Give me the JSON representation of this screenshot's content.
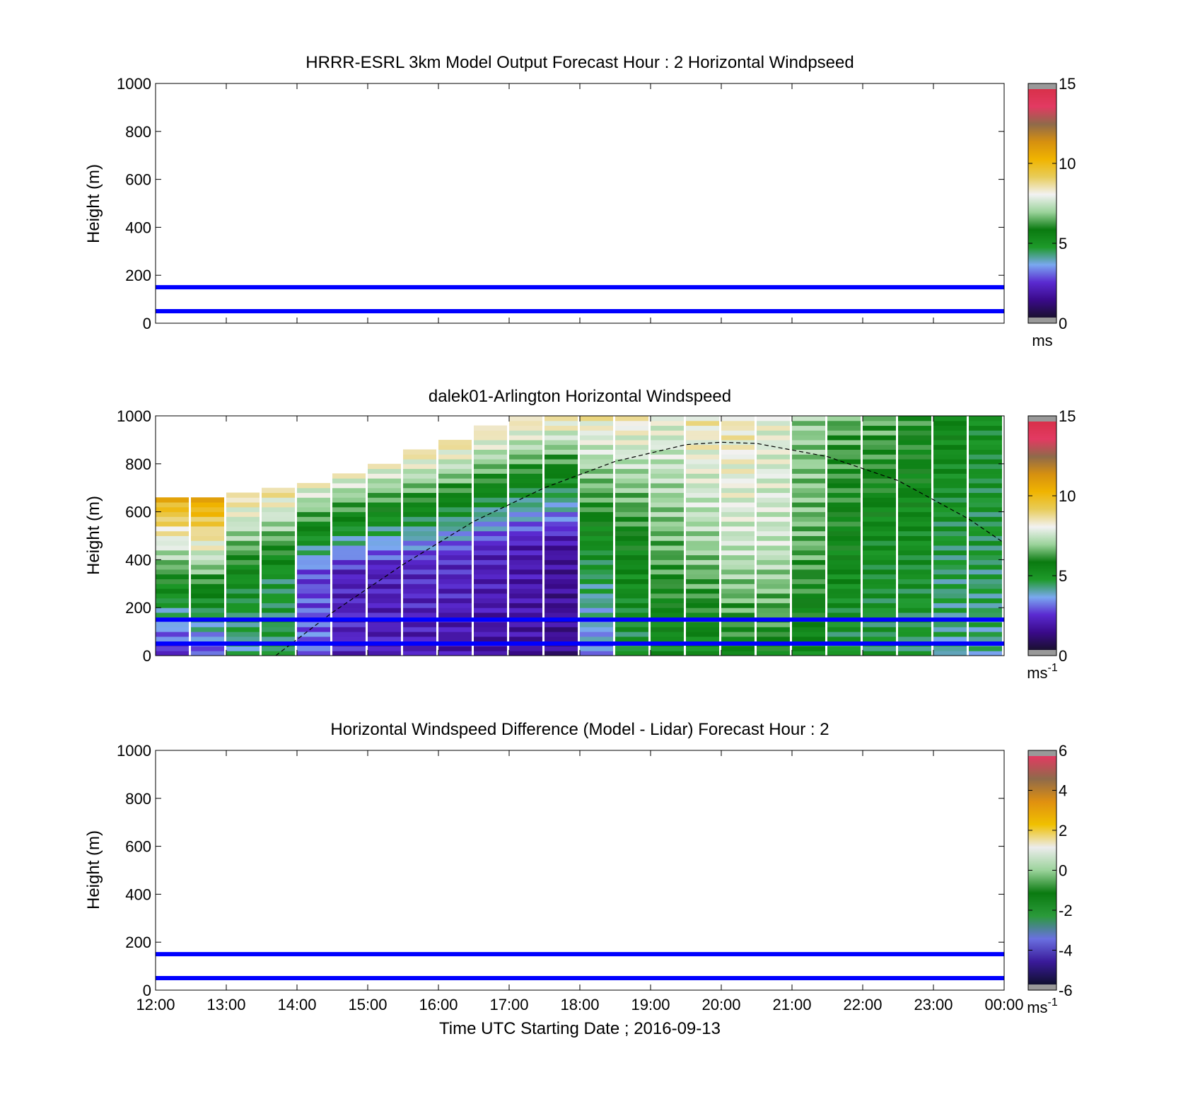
{
  "colors": {
    "guide_lines": "#0000ff",
    "speed_colormap": [
      "#1a1030",
      "#3a0a8a",
      "#5a2ad0",
      "#7aa8f0",
      "#1e9a2a",
      "#0a7a10",
      "#9bd39b",
      "#f2f2f2",
      "#e8cc5a",
      "#f0b400",
      "#d69010",
      "#8f6a4a",
      "#e23a62",
      "#d8304a"
    ],
    "diff_colormap": [
      "#101030",
      "#3a1a9a",
      "#6a70e0",
      "#2a9a3a",
      "#0a7a10",
      "#9bd39b",
      "#ececec",
      "#f0c000",
      "#e09010",
      "#8f6a4a",
      "#e23a62"
    ],
    "nodata": "#999999"
  },
  "panels": [
    {
      "id": "model",
      "title": "HRRR-ESRL 3km Model Output   Forecast Hour : 2 Horizontal Windpseed",
      "ylabel": "Height (m)",
      "yticks": [
        "0",
        "200",
        "400",
        "600",
        "800",
        "1000"
      ],
      "colorbar": {
        "ticks": [
          "0",
          "5",
          "10",
          "15"
        ],
        "range": [
          0,
          15
        ],
        "unit": "ms",
        "unit_sup": ""
      }
    },
    {
      "id": "lidar",
      "title": "dalek01-Arlington  Horizontal Windspeed",
      "ylabel": "Height (m)",
      "yticks": [
        "0",
        "200",
        "400",
        "600",
        "800",
        "1000"
      ],
      "colorbar": {
        "ticks": [
          "0",
          "5",
          "10",
          "15"
        ],
        "range": [
          0,
          15
        ],
        "unit": "ms",
        "unit_sup": "-1"
      }
    },
    {
      "id": "diff",
      "title": "Horizontal Windspeed Difference (Model - Lidar) Forecast Hour : 2",
      "ylabel": "Height (m)",
      "yticks": [
        "0",
        "200",
        "400",
        "600",
        "800",
        "1000"
      ],
      "colorbar": {
        "ticks": [
          "-6",
          "-4",
          "-2",
          "0",
          "2",
          "4",
          "6"
        ],
        "range": [
          -6,
          6
        ],
        "unit": "ms",
        "unit_sup": "-1"
      }
    }
  ],
  "xaxis": {
    "ticks": [
      "12:00",
      "13:00",
      "14:00",
      "15:00",
      "16:00",
      "17:00",
      "18:00",
      "19:00",
      "20:00",
      "21:00",
      "22:00",
      "23:00",
      "00:00"
    ],
    "label": "Time UTC  Starting Date ; 2016-09-13"
  },
  "chart_data": {
    "type": "heatmap",
    "x_range_hours_utc": [
      12,
      24
    ],
    "y_range_m": [
      0,
      1000
    ],
    "guide_lines_height_m": [
      50,
      150
    ],
    "boundary_layer_curve": {
      "hours_utc": [
        13.7,
        14.5,
        15.5,
        16.5,
        17.5,
        18.5,
        19.5,
        20.0,
        20.5,
        21.5,
        22.5,
        23.5,
        24.0
      ],
      "height_m": [
        0,
        180,
        380,
        560,
        700,
        810,
        880,
        890,
        885,
        830,
        730,
        570,
        470
      ]
    },
    "lidar_windspeed_columns": [
      {
        "hour": 12.0,
        "low": 2.0,
        "mid": 5.5,
        "high": 10.5,
        "top_m": 650
      },
      {
        "hour": 12.5,
        "low": 2.5,
        "mid": 6.0,
        "high": 11.0,
        "top_m": 660
      },
      {
        "hour": 13.0,
        "low": 4.0,
        "mid": 5.0,
        "high": 9.0,
        "top_m": 680
      },
      {
        "hour": 13.5,
        "low": 4.5,
        "mid": 4.5,
        "high": 9.0,
        "top_m": 700
      },
      {
        "hour": 14.0,
        "low": 3.0,
        "mid": 2.5,
        "high": 8.5,
        "top_m": 720
      },
      {
        "hour": 14.5,
        "low": 2.0,
        "mid": 2.0,
        "high": 8.5,
        "top_m": 760
      },
      {
        "hour": 15.0,
        "low": 1.8,
        "mid": 2.0,
        "high": 8.5,
        "top_m": 800
      },
      {
        "hour": 15.5,
        "low": 1.8,
        "mid": 2.2,
        "high": 8.8,
        "top_m": 850
      },
      {
        "hour": 16.0,
        "low": 1.7,
        "mid": 2.2,
        "high": 9.0,
        "top_m": 900
      },
      {
        "hour": 16.5,
        "low": 1.6,
        "mid": 2.0,
        "high": 9.0,
        "top_m": 960
      },
      {
        "hour": 17.0,
        "low": 1.5,
        "mid": 1.8,
        "high": 9.0,
        "top_m": 1000
      },
      {
        "hour": 17.5,
        "low": 1.2,
        "mid": 1.5,
        "high": 8.8,
        "top_m": 1000
      },
      {
        "hour": 18.0,
        "low": 3.0,
        "mid": 5.0,
        "high": 8.5,
        "top_m": 1000
      },
      {
        "hour": 18.5,
        "low": 4.5,
        "mid": 5.5,
        "high": 8.5,
        "top_m": 1000
      },
      {
        "hour": 19.0,
        "low": 5.0,
        "mid": 6.5,
        "high": 8.0,
        "top_m": 1000
      },
      {
        "hour": 19.5,
        "low": 5.0,
        "mid": 7.0,
        "high": 8.5,
        "top_m": 1000
      },
      {
        "hour": 20.0,
        "low": 5.5,
        "mid": 7.5,
        "high": 8.5,
        "top_m": 1000
      },
      {
        "hour": 20.5,
        "low": 5.5,
        "mid": 7.5,
        "high": 8.0,
        "top_m": 1000
      },
      {
        "hour": 21.0,
        "low": 5.0,
        "mid": 6.5,
        "high": 7.0,
        "top_m": 1000
      },
      {
        "hour": 21.5,
        "low": 4.5,
        "mid": 5.5,
        "high": 6.5,
        "top_m": 1000
      },
      {
        "hour": 22.0,
        "low": 4.5,
        "mid": 5.0,
        "high": 6.5,
        "top_m": 1000
      },
      {
        "hour": 22.5,
        "low": 4.5,
        "mid": 5.0,
        "high": 6.0,
        "top_m": 1000
      },
      {
        "hour": 23.0,
        "low": 4.0,
        "mid": 4.5,
        "high": 5.5,
        "top_m": 1000
      },
      {
        "hour": 23.5,
        "low": 4.0,
        "mid": 4.5,
        "high": 5.0,
        "top_m": 1000
      }
    ]
  }
}
